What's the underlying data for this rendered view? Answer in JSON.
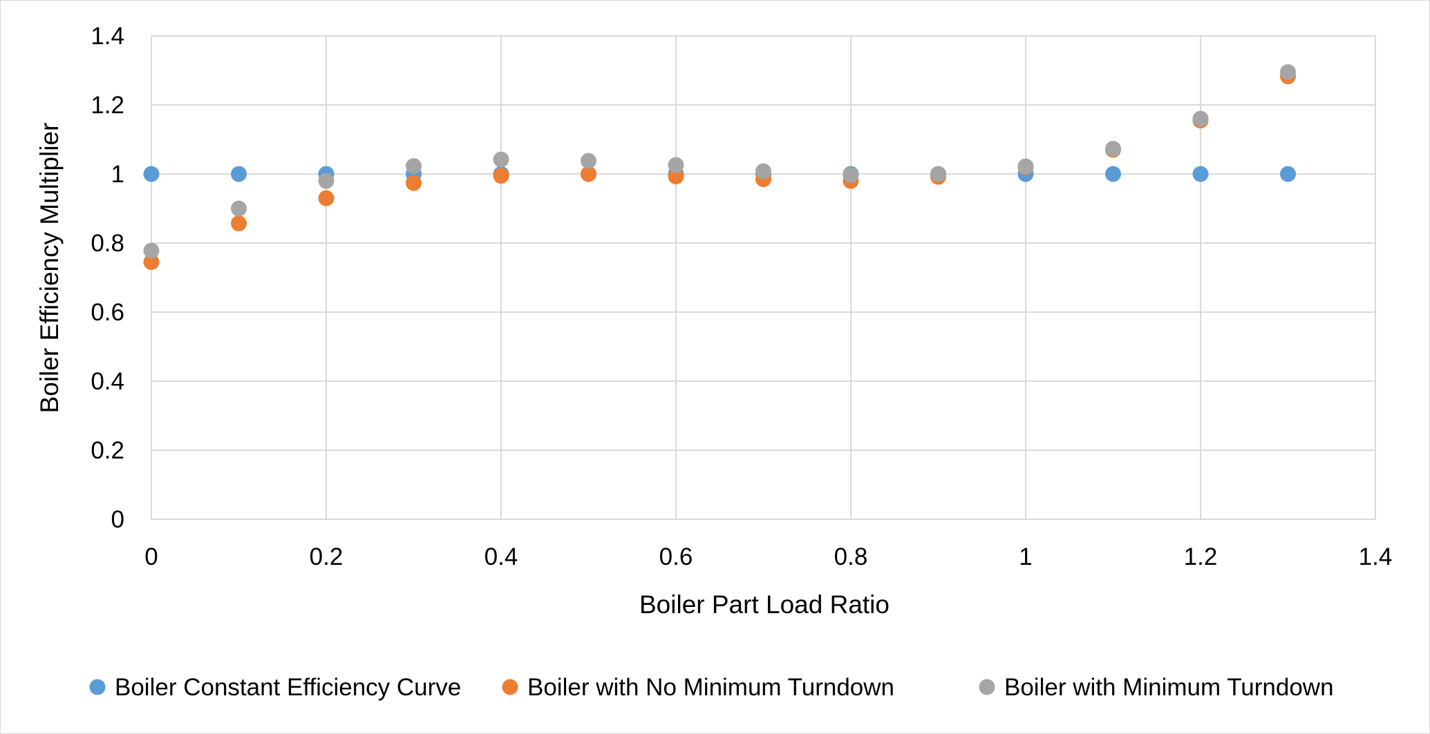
{
  "chart_data": {
    "type": "scatter",
    "title": "",
    "xlabel": "Boiler Part Load Ratio",
    "ylabel": "Boiler Efficiency Multiplier",
    "xlim": [
      0,
      1.4
    ],
    "ylim": [
      0,
      1.4
    ],
    "x_ticks": [
      0,
      0.2,
      0.4,
      0.6,
      0.8,
      1,
      1.2,
      1.4
    ],
    "y_ticks": [
      0,
      0.2,
      0.4,
      0.6,
      0.8,
      1,
      1.2,
      1.4
    ],
    "x_tick_labels": [
      "0",
      "0.2",
      "0.4",
      "0.6",
      "0.8",
      "1",
      "1.2",
      "1.4"
    ],
    "y_tick_labels": [
      "0",
      "0.2",
      "0.4",
      "0.6",
      "0.8",
      "1",
      "1.2",
      "1.4"
    ],
    "grid": true,
    "legend_position": "bottom",
    "series": [
      {
        "name": "Boiler Constant Efficiency Curve",
        "color": "#5B9BD5",
        "x": [
          0,
          0.1,
          0.2,
          0.3,
          0.4,
          0.5,
          0.6,
          0.7,
          0.8,
          0.9,
          1.0,
          1.1,
          1.2,
          1.3
        ],
        "y": [
          1,
          1,
          1,
          1,
          1,
          1,
          1,
          1,
          1,
          1,
          1,
          1,
          1,
          1
        ]
      },
      {
        "name": "Boiler with No Minimum Turndown",
        "color": "#ED7D31",
        "x": [
          0,
          0.1,
          0.2,
          0.3,
          0.4,
          0.5,
          0.6,
          0.7,
          0.8,
          0.9,
          1.0,
          1.1,
          1.2,
          1.3
        ],
        "y": [
          0.745,
          0.857,
          0.93,
          0.974,
          0.995,
          1.0,
          0.993,
          0.985,
          0.98,
          0.992,
          1.02,
          1.07,
          1.155,
          1.283
        ]
      },
      {
        "name": "Boiler with Minimum Turndown",
        "color": "#A5A5A5",
        "x": [
          0,
          0.1,
          0.2,
          0.3,
          0.4,
          0.5,
          0.6,
          0.7,
          0.8,
          0.9,
          1.0,
          1.1,
          1.2,
          1.3
        ],
        "y": [
          0.778,
          0.9,
          0.98,
          1.023,
          1.042,
          1.038,
          1.026,
          1.008,
          0.997,
          1.0,
          1.022,
          1.073,
          1.16,
          1.295
        ]
      }
    ]
  }
}
